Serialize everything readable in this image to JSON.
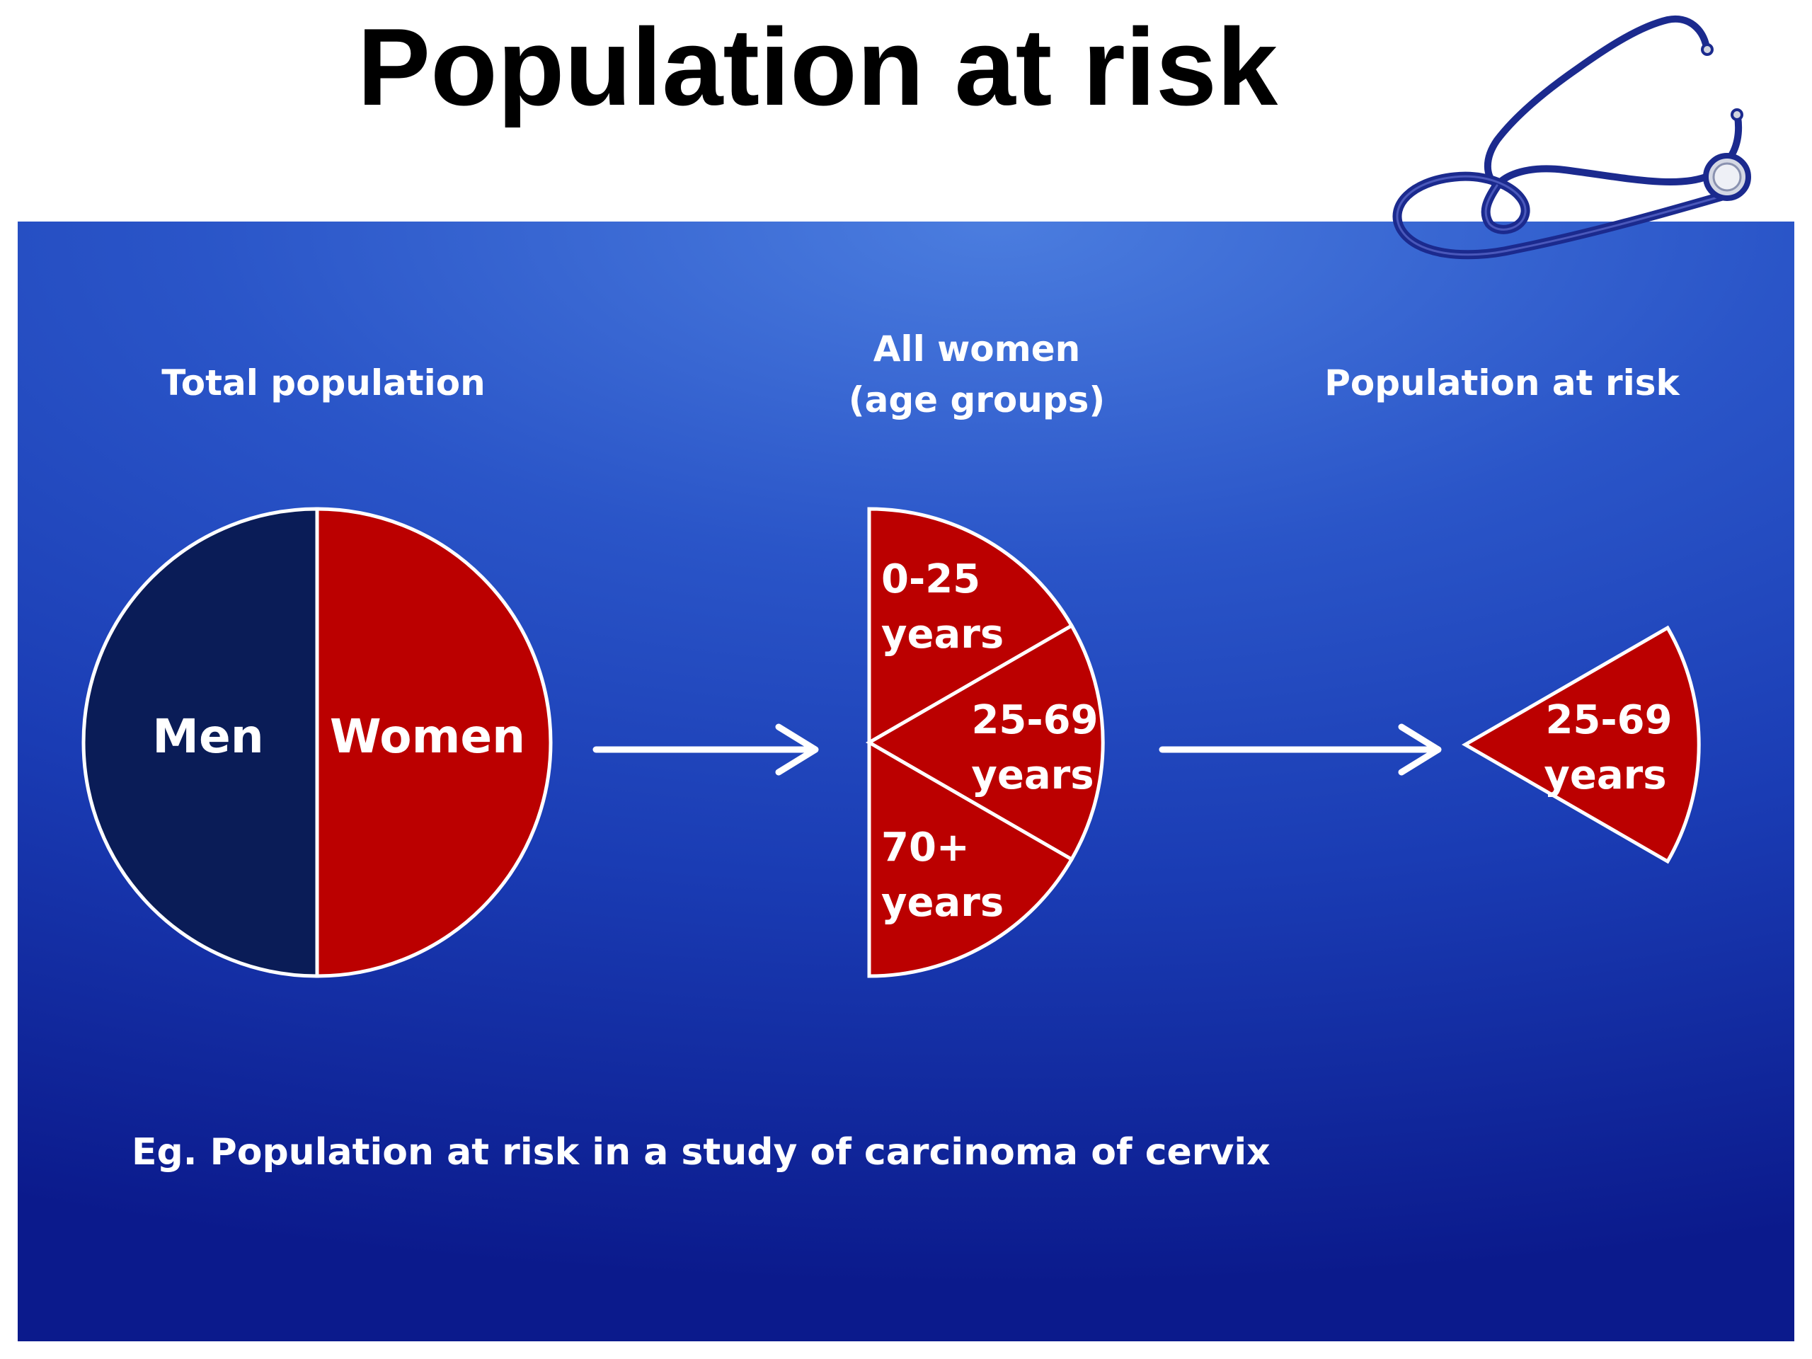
{
  "title": "Population at risk",
  "stages": {
    "total": {
      "heading": "Total population",
      "men_label": "Men",
      "women_label": "Women"
    },
    "women": {
      "heading_line1": "All women",
      "heading_line2": "(age groups)",
      "groups": [
        {
          "line1": "0-25",
          "line2": "years"
        },
        {
          "line1": "25-69",
          "line2": "years"
        },
        {
          "line1": "70+",
          "line2": "years"
        }
      ]
    },
    "at_risk": {
      "heading": "Population at risk",
      "line1": "25-69",
      "line2": "years"
    }
  },
  "note": "Eg. Population at risk in a study of carcinoma of cervix",
  "icons": [
    "stethoscope-icon",
    "arrow-right-icon"
  ],
  "colors": {
    "men": "#0a1c57",
    "women": "#bb0000",
    "panel_light": "#4b7ddf",
    "panel_dark": "#0b1a8c",
    "outline": "#ffffff"
  }
}
